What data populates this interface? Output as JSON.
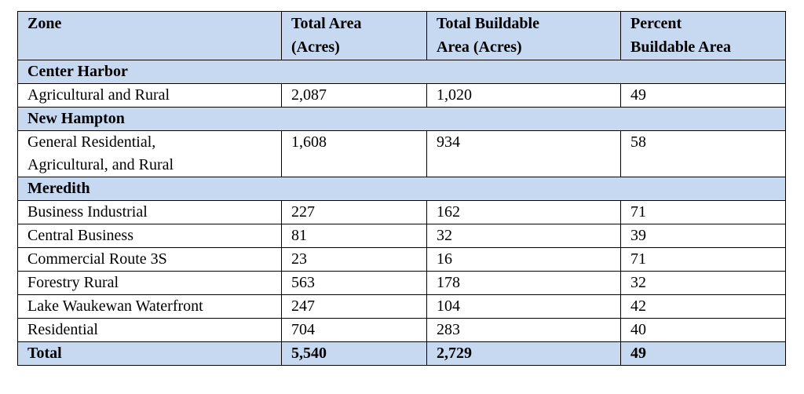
{
  "table": {
    "header": [
      [
        "Zone"
      ],
      [
        "Total Area",
        "(Acres)"
      ],
      [
        "Total Buildable",
        "Area (Acres)"
      ],
      [
        "Percent",
        "Buildable Area"
      ]
    ],
    "sections": [
      {
        "name": "Center Harbor",
        "rows": [
          [
            "Agricultural and Rural",
            "2,087",
            "1,020",
            "49"
          ]
        ]
      },
      {
        "name": "New Hampton",
        "rows": [
          [
            [
              "General Residential,",
              "Agricultural, and Rural"
            ],
            "1,608",
            "934",
            "58"
          ]
        ]
      },
      {
        "name": "Meredith",
        "rows": [
          [
            "Business Industrial",
            "227",
            "162",
            "71"
          ],
          [
            "Central Business",
            "81",
            "32",
            "39"
          ],
          [
            "Commercial Route 3S",
            "23",
            "16",
            "71"
          ],
          [
            "Forestry Rural",
            "563",
            "178",
            "32"
          ],
          [
            "Lake Waukewan Waterfront",
            "247",
            "104",
            "42"
          ],
          [
            "Residential",
            "704",
            "283",
            "40"
          ]
        ]
      }
    ],
    "total": [
      "Total",
      "5,540",
      "2,729",
      "49"
    ]
  }
}
